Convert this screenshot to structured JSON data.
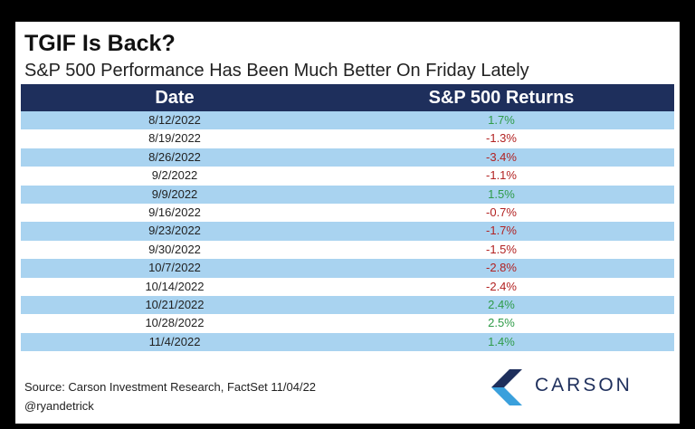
{
  "title": "TGIF Is Back?",
  "subtitle": "S&P 500 Performance Has Been Much Better On Friday Lately",
  "source": "Source: Carson Investment Research, FactSet 11/04/22",
  "handle": "@ryandetrick",
  "logo_text": "CARSON",
  "colors": {
    "header_bg": "#1e2f5c",
    "row_alt": "#a9d3f0",
    "positive": "#2e9b48",
    "negative": "#b22222"
  },
  "chart_data": {
    "type": "table",
    "columns": [
      "Date",
      "S&P 500 Returns"
    ],
    "rows": [
      {
        "date": "8/12/2022",
        "return": "1.7%",
        "value": 1.7
      },
      {
        "date": "8/19/2022",
        "return": "-1.3%",
        "value": -1.3
      },
      {
        "date": "8/26/2022",
        "return": "-3.4%",
        "value": -3.4
      },
      {
        "date": "9/2/2022",
        "return": "-1.1%",
        "value": -1.1
      },
      {
        "date": "9/9/2022",
        "return": "1.5%",
        "value": 1.5
      },
      {
        "date": "9/16/2022",
        "return": "-0.7%",
        "value": -0.7
      },
      {
        "date": "9/23/2022",
        "return": "-1.7%",
        "value": -1.7
      },
      {
        "date": "9/30/2022",
        "return": "-1.5%",
        "value": -1.5
      },
      {
        "date": "10/7/2022",
        "return": "-2.8%",
        "value": -2.8
      },
      {
        "date": "10/14/2022",
        "return": "-2.4%",
        "value": -2.4
      },
      {
        "date": "10/21/2022",
        "return": "2.4%",
        "value": 2.4
      },
      {
        "date": "10/28/2022",
        "return": "2.5%",
        "value": 2.5
      },
      {
        "date": "11/4/2022",
        "return": "1.4%",
        "value": 1.4
      }
    ]
  }
}
